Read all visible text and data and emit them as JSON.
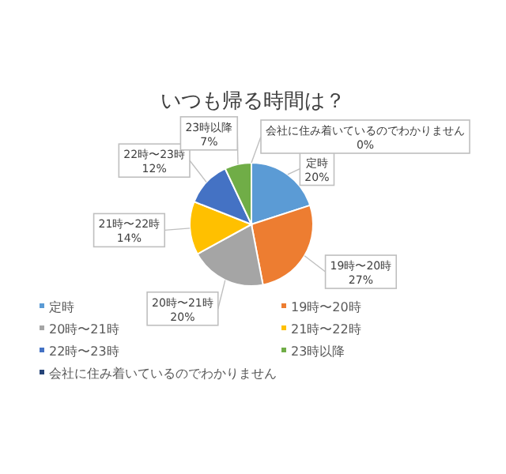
{
  "chart_data": {
    "type": "pie",
    "title": "いつも帰る時間は？",
    "categories": [
      "定時",
      "19時〜20時",
      "20時〜21時",
      "21時〜22時",
      "22時〜23時",
      "23時以降",
      "会社に住み着いているのでわかりません"
    ],
    "values": [
      20,
      27,
      20,
      14,
      12,
      7,
      0
    ],
    "colors": [
      "#5b9bd5",
      "#ed7d31",
      "#a5a5a5",
      "#ffc000",
      "#4472c4",
      "#70ad47",
      "#264478"
    ],
    "value_labels": [
      "20%",
      "27%",
      "20%",
      "14%",
      "12%",
      "7%",
      "0%"
    ],
    "data_labels": true,
    "legend": "bottom"
  }
}
